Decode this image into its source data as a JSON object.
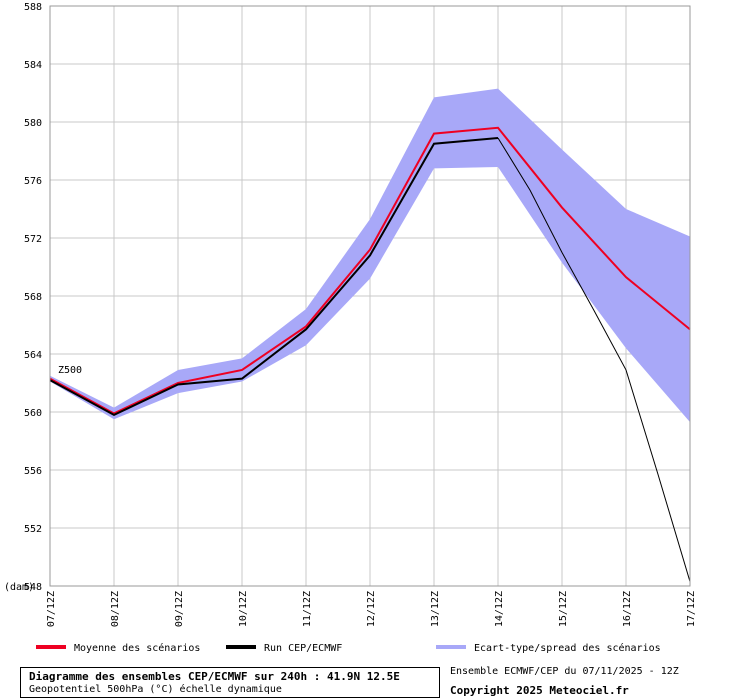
{
  "chart_data": {
    "type": "line",
    "categories": [
      "07/12Z",
      "08/12Z",
      "09/12Z",
      "10/12Z",
      "11/12Z",
      "12/12Z",
      "13/12Z",
      "14/12Z",
      "15/12Z",
      "16/12Z",
      "17/12Z"
    ],
    "y_unit": "(dam)",
    "ylim": [
      548,
      588
    ],
    "yticks": [
      548,
      552,
      556,
      560,
      564,
      568,
      572,
      576,
      580,
      584,
      588
    ],
    "grid": true,
    "annotation": "Z500",
    "series": [
      {
        "name": "Moyenne des scénarios",
        "color": "#ee0022",
        "type": "line",
        "values": [
          562.3,
          559.9,
          562.0,
          562.9,
          565.9,
          571.2,
          579.2,
          579.6,
          574.1,
          569.3,
          565.7
        ]
      },
      {
        "name": "Run CEP/ECMWF",
        "color": "#000000",
        "type": "line",
        "points": [
          {
            "x": 0,
            "y": 562.2
          },
          {
            "x": 1,
            "y": 559.8
          },
          {
            "x": 2,
            "y": 561.9
          },
          {
            "x": 3,
            "y": 562.3
          },
          {
            "x": 4,
            "y": 565.7
          },
          {
            "x": 5,
            "y": 570.8
          },
          {
            "x": 6,
            "y": 578.5
          },
          {
            "x": 7,
            "y": 578.9
          },
          {
            "x": 7.5,
            "y": 575.3
          },
          {
            "x": 8,
            "y": 571.0
          },
          {
            "x": 8.5,
            "y": 567.0
          },
          {
            "x": 9,
            "y": 562.9
          },
          {
            "x": 9.5,
            "y": 555.7
          },
          {
            "x": 10,
            "y": 548.3
          }
        ]
      },
      {
        "name": "Ecart-type/spread des scénarios",
        "color": "#a8a8f8",
        "type": "band",
        "upper": [
          562.5,
          560.3,
          562.9,
          563.7,
          567.1,
          573.3,
          581.7,
          582.3,
          578.1,
          574.0,
          572.1
        ],
        "lower": [
          562.1,
          559.5,
          561.3,
          562.1,
          564.6,
          569.2,
          576.8,
          576.9,
          570.3,
          564.4,
          559.3
        ]
      }
    ]
  },
  "title_box": {
    "title": "Diagramme des ensembles CEP/ECMWF sur 240h : 41.9N 12.5E",
    "subtitle": "Geopotentiel 500hPa (°C) échelle dynamique"
  },
  "info": {
    "run": "Ensemble ECMWF/CEP du 07/11/2025 - 12Z",
    "copyright": "Copyright 2025 Meteociel.fr"
  }
}
